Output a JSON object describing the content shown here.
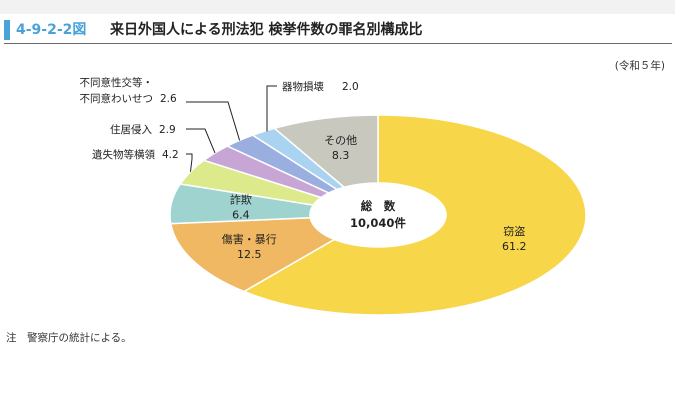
{
  "figure_number": "4-9-2-2図",
  "title": "来日外国人による刑法犯 検挙件数の罪名別構成比",
  "era_note": "(令和５年)",
  "footnote": "注　警察庁の統計による。",
  "center": {
    "label": "総　数",
    "value": "10,040件"
  },
  "colors": {
    "accent": "#4aa3d8",
    "theft": "#f7d64a",
    "injury": "#f0b862",
    "fraud": "#9fd3cf",
    "embezzle": "#dcea8c",
    "trespass": "#c7a6d6",
    "sexual": "#9aaee0",
    "property": "#a9d3f0",
    "other": "#c9c8bf"
  },
  "chart_data": {
    "type": "pie",
    "donut": true,
    "title": "来日外国人による刑法犯 検挙件数の罪名別構成比",
    "unit": "%",
    "total": "10,040件",
    "slices": [
      {
        "name": "窃盗",
        "value": 61.2,
        "value_label": "61.2",
        "color": "#f7d64a"
      },
      {
        "name": "傷害・暴行",
        "value": 12.5,
        "value_label": "12.5",
        "color": "#f0b862"
      },
      {
        "name": "詐欺",
        "value": 6.4,
        "value_label": "6.4",
        "color": "#9fd3cf"
      },
      {
        "name": "遺失物等横領",
        "value": 4.2,
        "value_label": "4.2",
        "color": "#dcea8c"
      },
      {
        "name": "住居侵入",
        "value": 2.9,
        "value_label": "2.9",
        "color": "#c7a6d6"
      },
      {
        "name": "不同意性交等・不同意わいせつ",
        "name_lines": [
          "不同意性交等・",
          "不同意わいせつ"
        ],
        "value": 2.6,
        "value_label": "2.6",
        "color": "#9aaee0"
      },
      {
        "name": "器物損壊",
        "value": 2.0,
        "value_label": "2.0",
        "color": "#a9d3f0"
      },
      {
        "name": "その他",
        "value": 8.3,
        "value_label": "8.3",
        "color": "#c9c8bf"
      }
    ]
  }
}
